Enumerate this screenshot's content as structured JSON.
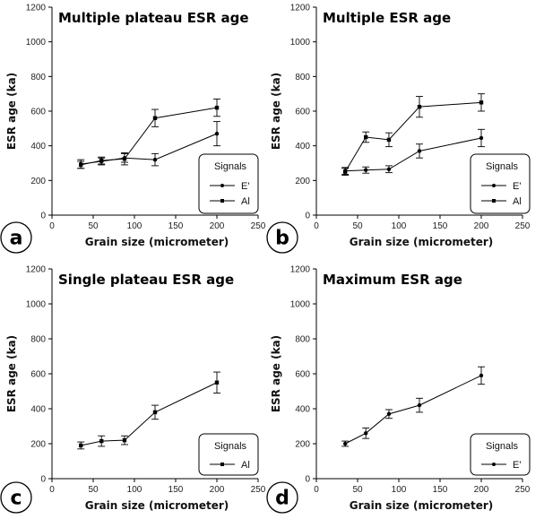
{
  "chart_data": [
    {
      "type": "line",
      "panel": "a",
      "title": "Multiple plateau ESR age",
      "xlabel": "Grain size (micrometer)",
      "ylabel": "ESR age (ka)",
      "xlim": [
        0,
        250
      ],
      "ylim": [
        0,
        1200
      ],
      "xticks": [
        "0",
        "50",
        "100",
        "150",
        "200",
        "250"
      ],
      "yticks": [
        "0",
        "200",
        "400",
        "600",
        "800",
        "1000",
        "1200"
      ],
      "legend_title": "Signals",
      "x": [
        35,
        60,
        88,
        125,
        200
      ],
      "series": [
        {
          "name": "E'",
          "marker": "circle",
          "values": [
            295,
            310,
            330,
            320,
            470
          ],
          "errors": [
            25,
            20,
            25,
            35,
            70
          ]
        },
        {
          "name": "Al",
          "marker": "square",
          "values": [
            290,
            315,
            325,
            560,
            620
          ],
          "errors": [
            20,
            20,
            35,
            50,
            50
          ]
        }
      ]
    },
    {
      "type": "line",
      "panel": "b",
      "title": "Multiple ESR age",
      "xlabel": "Grain size (micrometer)",
      "ylabel": "ESR age (ka)",
      "xlim": [
        0,
        250
      ],
      "ylim": [
        0,
        1200
      ],
      "xticks": [
        "0",
        "50",
        "100",
        "150",
        "200",
        "250"
      ],
      "yticks": [
        "0",
        "200",
        "400",
        "600",
        "800",
        "1000",
        "1200"
      ],
      "legend_title": "Signals",
      "x": [
        35,
        60,
        88,
        125,
        200
      ],
      "series": [
        {
          "name": "E'",
          "marker": "circle",
          "values": [
            255,
            260,
            265,
            370,
            445
          ],
          "errors": [
            20,
            18,
            20,
            40,
            50
          ]
        },
        {
          "name": "Al",
          "marker": "square",
          "values": [
            250,
            450,
            435,
            625,
            650
          ],
          "errors": [
            20,
            30,
            40,
            60,
            50
          ]
        }
      ]
    },
    {
      "type": "line",
      "panel": "c",
      "title": "Single plateau ESR age",
      "xlabel": "Grain size (micrometer)",
      "ylabel": "ESR age (ka)",
      "xlim": [
        0,
        250
      ],
      "ylim": [
        0,
        1200
      ],
      "xticks": [
        "0",
        "50",
        "100",
        "150",
        "200",
        "250"
      ],
      "yticks": [
        "0",
        "200",
        "400",
        "600",
        "800",
        "1000",
        "1200"
      ],
      "legend_title": "Signals",
      "x": [
        35,
        60,
        88,
        125,
        200
      ],
      "series": [
        {
          "name": "Al",
          "marker": "square",
          "values": [
            190,
            215,
            220,
            380,
            550
          ],
          "errors": [
            20,
            30,
            25,
            40,
            60
          ]
        }
      ]
    },
    {
      "type": "line",
      "panel": "d",
      "title": "Maximum ESR age",
      "xlabel": "Grain size (micrometer)",
      "ylabel": "ESR age (ka)",
      "xlim": [
        0,
        250
      ],
      "ylim": [
        0,
        1200
      ],
      "xticks": [
        "0",
        "50",
        "100",
        "150",
        "200",
        "250"
      ],
      "yticks": [
        "0",
        "200",
        "400",
        "600",
        "800",
        "1000",
        "1200"
      ],
      "legend_title": "Signals",
      "x": [
        35,
        60,
        88,
        125,
        200
      ],
      "series": [
        {
          "name": "E'",
          "marker": "circle",
          "values": [
            200,
            260,
            370,
            420,
            590
          ],
          "errors": [
            15,
            30,
            25,
            40,
            50
          ]
        }
      ]
    }
  ]
}
